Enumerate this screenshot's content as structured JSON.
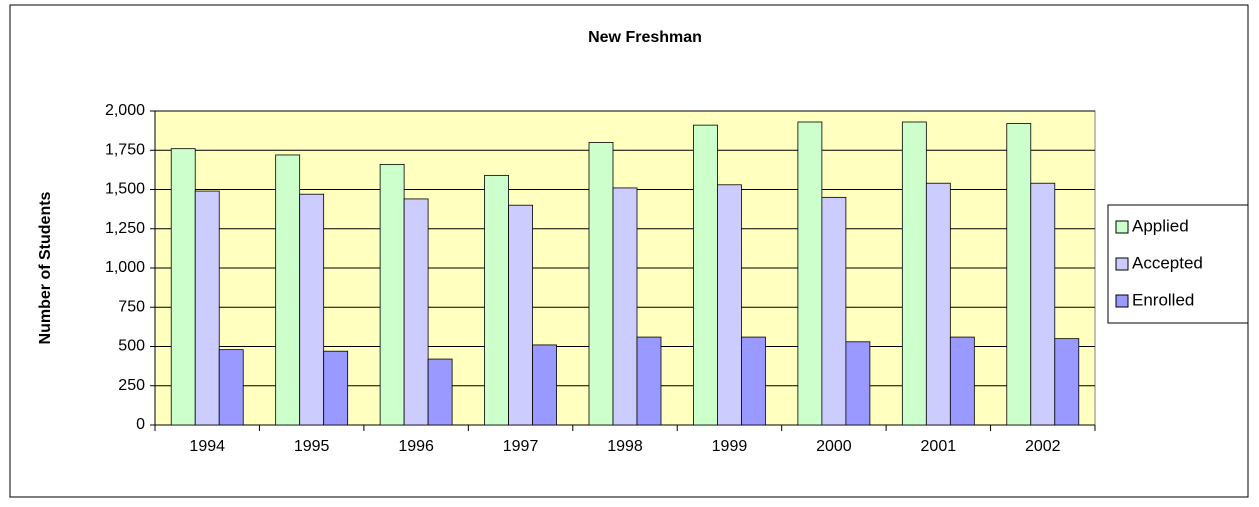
{
  "chart_data": {
    "type": "bar",
    "title": "New Freshman",
    "y_label": "Number of Students",
    "categories": [
      "1994",
      "1995",
      "1996",
      "1997",
      "1998",
      "1999",
      "2000",
      "2001",
      "2002"
    ],
    "series": [
      {
        "name": "Applied",
        "color": "#ccffcc",
        "values": [
          1760,
          1720,
          1660,
          1590,
          1800,
          1910,
          1930,
          1930,
          1920
        ]
      },
      {
        "name": "Accepted",
        "color": "#ccccff",
        "values": [
          1490,
          1470,
          1440,
          1400,
          1510,
          1530,
          1450,
          1540,
          1540
        ]
      },
      {
        "name": "Enrolled",
        "color": "#9999ff",
        "values": [
          480,
          470,
          420,
          510,
          560,
          560,
          530,
          560,
          550
        ]
      }
    ],
    "ylim": [
      0,
      2000
    ],
    "yticks": [
      0,
      250,
      500,
      750,
      {
        "value": 1000,
        "label": "1,000"
      },
      {
        "value": 1250,
        "label": "1,250"
      },
      {
        "value": 1500,
        "label": "1,500"
      },
      {
        "value": 1750,
        "label": "1,750"
      },
      {
        "value": 2000,
        "label": "2,000"
      }
    ],
    "grid": true,
    "legend": "right",
    "plot_background": "#ffffc0"
  }
}
